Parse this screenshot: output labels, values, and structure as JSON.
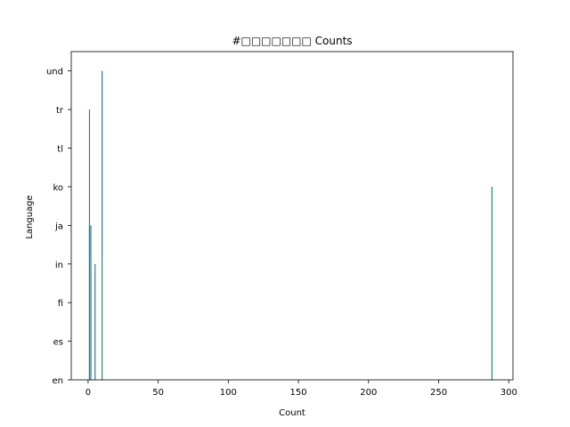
{
  "chart_data": {
    "type": "bar",
    "title": "#□□□□□□□ Counts",
    "xlabel": "Count",
    "ylabel": "Language",
    "categories": [
      "en",
      "es",
      "fi",
      "in",
      "ja",
      "ko",
      "tl",
      "tr",
      "und"
    ],
    "bars": [
      {
        "x": 1,
        "value": 4
      },
      {
        "x": 2,
        "value": 4
      },
      {
        "x": 5,
        "value": 3
      },
      {
        "x": 1,
        "value": 7
      },
      {
        "x": 10,
        "value": 8
      },
      {
        "x": 288,
        "value": 5
      }
    ],
    "xlim": [
      -12,
      303
    ],
    "ylim": [
      0,
      8.5
    ],
    "xticks": [
      0,
      50,
      100,
      150,
      200,
      250,
      300
    ],
    "grid": false,
    "bar_color": "#2a7f8a"
  }
}
